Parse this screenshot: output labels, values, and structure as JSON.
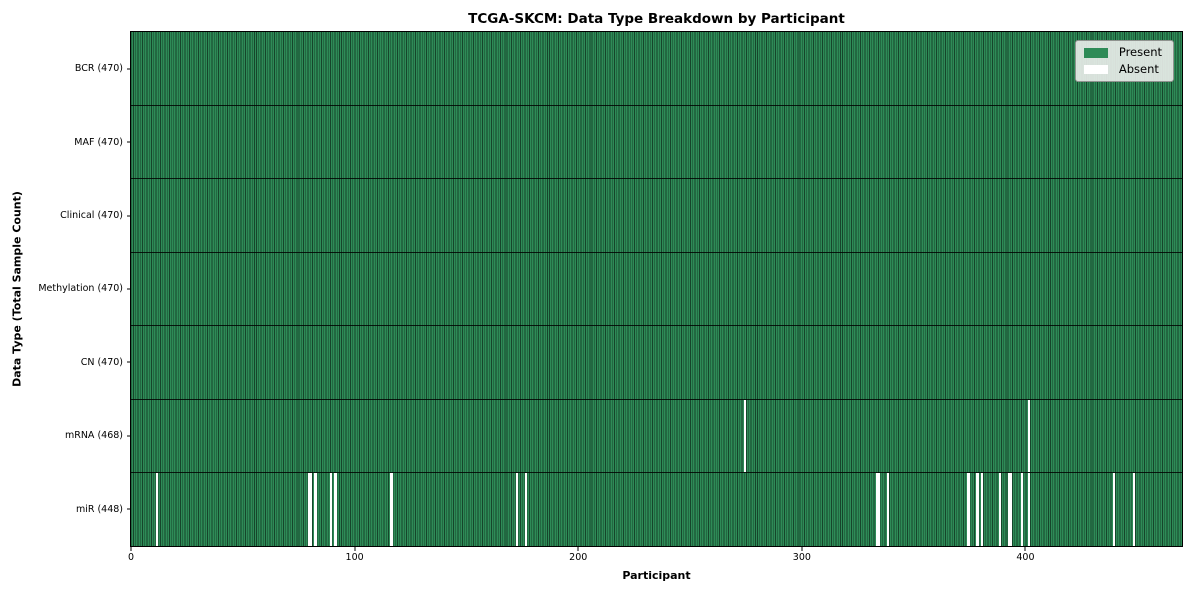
{
  "chart_data": {
    "type": "heatmap",
    "title": "TCGA-SKCM: Data Type Breakdown by Participant",
    "xlabel": "Participant",
    "ylabel": "Data Type (Total Sample Count)",
    "n_participants": 470,
    "x_ticks": [
      0,
      100,
      200,
      300,
      400
    ],
    "grid": "cell-edges",
    "legend_position": "upper right",
    "legend": [
      {
        "label": "Present",
        "color": "#2e8b57"
      },
      {
        "label": "Absent",
        "color": "#ffffff"
      }
    ],
    "rows": [
      {
        "label": "BCR (470)",
        "data_type": "BCR",
        "count": 470,
        "absent": []
      },
      {
        "label": "MAF (470)",
        "data_type": "MAF",
        "count": 470,
        "absent": []
      },
      {
        "label": "Clinical (470)",
        "data_type": "Clinical",
        "count": 470,
        "absent": []
      },
      {
        "label": "Methylation (470)",
        "data_type": "Methylation",
        "count": 470,
        "absent": []
      },
      {
        "label": "CN (470)",
        "data_type": "CN",
        "count": 470,
        "absent": []
      },
      {
        "label": "mRNA (468)",
        "data_type": "mRNA",
        "count": 468,
        "absent": [
          274,
          401
        ]
      },
      {
        "label": "miR (448)",
        "data_type": "miR",
        "count": 448,
        "absent": [
          11,
          79,
          80,
          82,
          89,
          91,
          116,
          172,
          176,
          333,
          334,
          338,
          374,
          378,
          380,
          388,
          392,
          393,
          398,
          401,
          439,
          448
        ]
      }
    ],
    "colors": {
      "present": "#2e8b57",
      "absent": "#ffffff",
      "cell_edge": "#16452b",
      "row_separator": "#1a1a1a",
      "axis": "#000000",
      "legend_face": "#e8ece8",
      "background": "#ffffff"
    }
  }
}
